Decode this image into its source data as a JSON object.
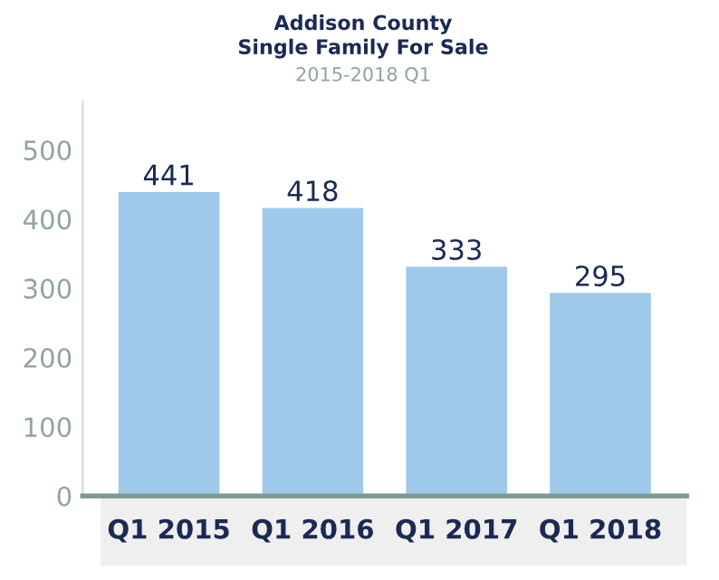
{
  "chart_data": {
    "type": "bar",
    "title": "Addison County\nSingle Family For Sale",
    "subtitle": "2015-2018 Q1",
    "categories": [
      "Q1 2015",
      "Q1 2016",
      "Q1 2017",
      "Q1 2018"
    ],
    "values": [
      441,
      418,
      333,
      295
    ],
    "color": "#9fc9eb",
    "ylim": [
      0,
      570
    ],
    "yticks": [
      0,
      100,
      200,
      300,
      400,
      500
    ],
    "grid": false,
    "data_labels": true
  }
}
